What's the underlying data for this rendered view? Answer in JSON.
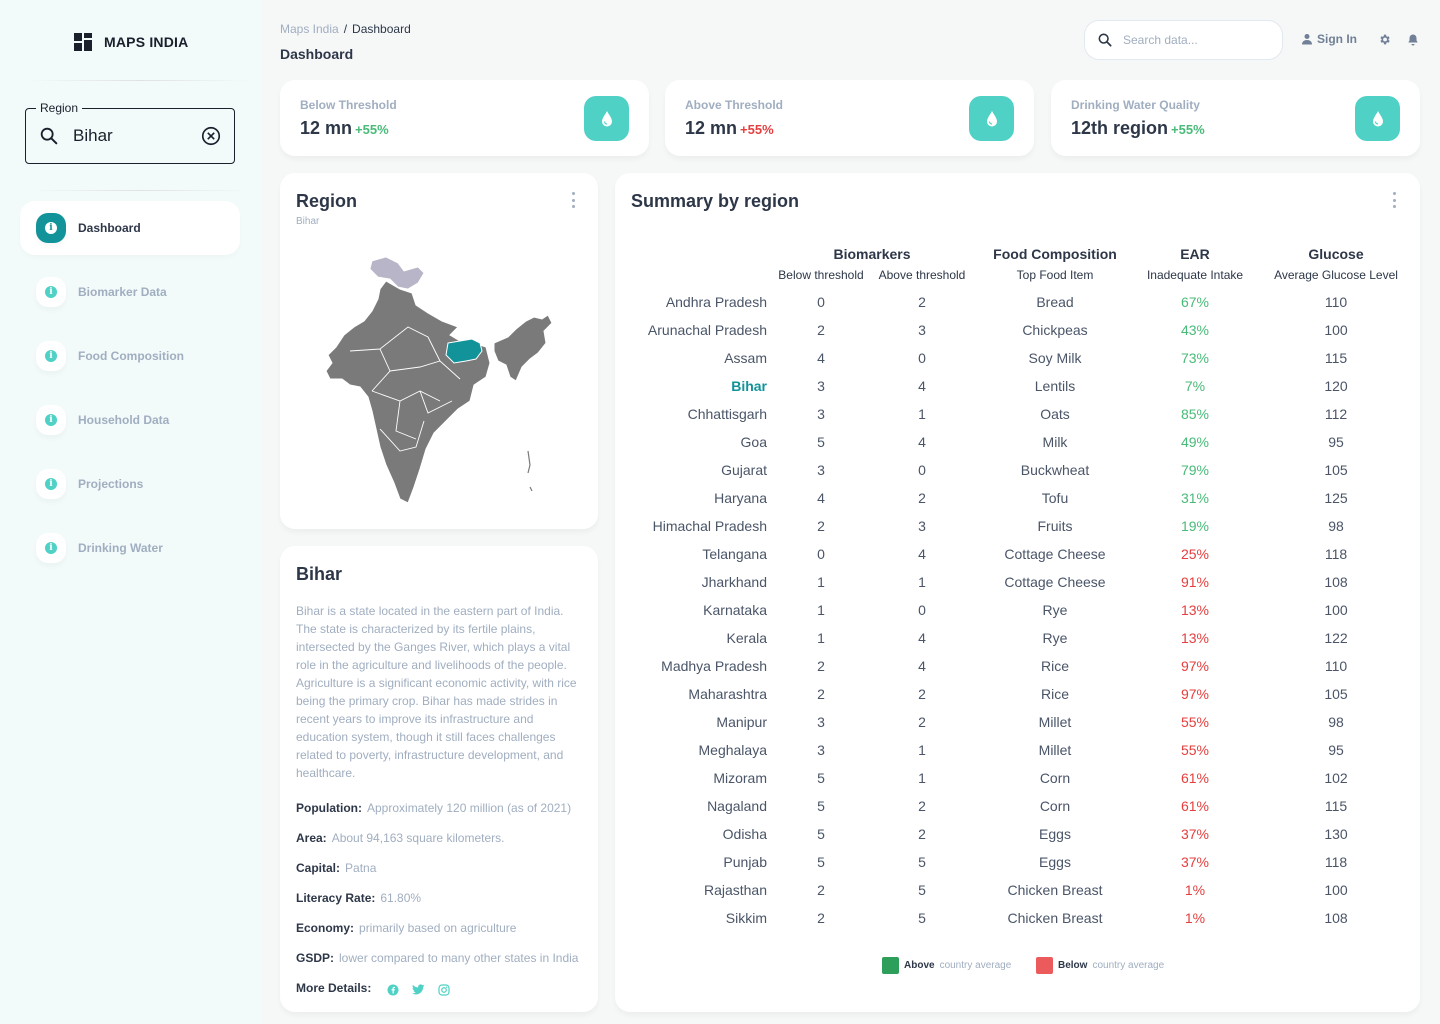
{
  "app": {
    "name": "MAPS INDIA"
  },
  "sidebar": {
    "region_filter": {
      "label": "Region",
      "value": "Bihar"
    },
    "nav": [
      {
        "label": "Dashboard",
        "active": true
      },
      {
        "label": "Biomarker Data",
        "active": false
      },
      {
        "label": "Food Composition",
        "active": false
      },
      {
        "label": "Household Data",
        "active": false
      },
      {
        "label": "Projections",
        "active": false
      },
      {
        "label": "Drinking Water",
        "active": false
      }
    ]
  },
  "header": {
    "breadcrumb": {
      "root": "Maps India",
      "separator": "/",
      "current": "Dashboard"
    },
    "title": "Dashboard",
    "search": {
      "placeholder": "Search data..."
    },
    "signin_label": "Sign In"
  },
  "stats": [
    {
      "label": "Below Threshold",
      "value": "12 mn",
      "change": "+55%",
      "change_color": "#48bb78"
    },
    {
      "label": "Above Threshold",
      "value": "12 mn",
      "change": "+55%",
      "change_color": "#e53e3e"
    },
    {
      "label": "Drinking Water Quality",
      "value": "12th region",
      "change": "+55%",
      "change_color": "#48bb78"
    }
  ],
  "region_card": {
    "title": "Region",
    "subtitle": "Bihar"
  },
  "info_card": {
    "title": "Bihar",
    "description": "Bihar is a state located in the eastern part of India. The state is characterized by its fertile plains, intersected by the Ganges River, which plays a vital role in the agriculture and livelihoods of the people. Agriculture is a significant economic activity, with rice being the primary crop. Bihar has made strides in recent years to improve its infrastructure and education system, though it still faces challenges related to poverty, infrastructure development, and healthcare.",
    "facts": [
      {
        "label": "Population:",
        "value": "Approximately 120 million (as of 2021)"
      },
      {
        "label": "Area:",
        "value": "About 94,163 square kilometers."
      },
      {
        "label": "Capital:",
        "value": "Patna"
      },
      {
        "label": "Literacy Rate:",
        "value": "61.80%"
      },
      {
        "label": "Economy:",
        "value": "primarily based on agriculture"
      },
      {
        "label": "GSDP:",
        "value": "lower compared to many other states in India"
      }
    ],
    "more_details_label": "More Details:"
  },
  "summary": {
    "title": "Summary by region",
    "groups": {
      "biomarkers": "Biomarkers",
      "food": "Food Composition",
      "ear": "EAR",
      "glucose": "Glucose"
    },
    "subheaders": {
      "below": "Below threshold",
      "above": "Above threshold",
      "food": "Top Food Item",
      "ear": "Inadequate Intake",
      "glucose": "Average Glucose Level"
    },
    "highlight": "Bihar",
    "rows": [
      {
        "region": "Andhra Pradesh",
        "below": "0",
        "above": "2",
        "food": "Bread",
        "ear": "67%",
        "ear_status": "above",
        "glucose": "110"
      },
      {
        "region": "Arunachal Pradesh",
        "below": "2",
        "above": "3",
        "food": "Chickpeas",
        "ear": "43%",
        "ear_status": "above",
        "glucose": "100"
      },
      {
        "region": "Assam",
        "below": "4",
        "above": "0",
        "food": "Soy Milk",
        "ear": "73%",
        "ear_status": "above",
        "glucose": "115"
      },
      {
        "region": "Bihar",
        "below": "3",
        "above": "4",
        "food": "Lentils",
        "ear": "7%",
        "ear_status": "above",
        "glucose": "120"
      },
      {
        "region": "Chhattisgarh",
        "below": "3",
        "above": "1",
        "food": "Oats",
        "ear": "85%",
        "ear_status": "above",
        "glucose": "112"
      },
      {
        "region": "Goa",
        "below": "5",
        "above": "4",
        "food": "Milk",
        "ear": "49%",
        "ear_status": "above",
        "glucose": "95"
      },
      {
        "region": "Gujarat",
        "below": "3",
        "above": "0",
        "food": "Buckwheat",
        "ear": "79%",
        "ear_status": "above",
        "glucose": "105"
      },
      {
        "region": "Haryana",
        "below": "4",
        "above": "2",
        "food": "Tofu",
        "ear": "31%",
        "ear_status": "above",
        "glucose": "125"
      },
      {
        "region": "Himachal Pradesh",
        "below": "2",
        "above": "3",
        "food": "Fruits",
        "ear": "19%",
        "ear_status": "above",
        "glucose": "98"
      },
      {
        "region": "Telangana",
        "below": "0",
        "above": "4",
        "food": "Cottage Cheese",
        "ear": "25%",
        "ear_status": "below",
        "glucose": "118"
      },
      {
        "region": "Jharkhand",
        "below": "1",
        "above": "1",
        "food": "Cottage Cheese",
        "ear": "91%",
        "ear_status": "below",
        "glucose": "108"
      },
      {
        "region": "Karnataka",
        "below": "1",
        "above": "0",
        "food": "Rye",
        "ear": "13%",
        "ear_status": "below",
        "glucose": "100"
      },
      {
        "region": "Kerala",
        "below": "1",
        "above": "4",
        "food": "Rye",
        "ear": "13%",
        "ear_status": "below",
        "glucose": "122"
      },
      {
        "region": "Madhya Pradesh",
        "below": "2",
        "above": "4",
        "food": "Rice",
        "ear": "97%",
        "ear_status": "below",
        "glucose": "110"
      },
      {
        "region": "Maharashtra",
        "below": "2",
        "above": "2",
        "food": "Rice",
        "ear": "97%",
        "ear_status": "below",
        "glucose": "105"
      },
      {
        "region": "Manipur",
        "below": "3",
        "above": "2",
        "food": "Millet",
        "ear": "55%",
        "ear_status": "below",
        "glucose": "98"
      },
      {
        "region": "Meghalaya",
        "below": "3",
        "above": "1",
        "food": "Millet",
        "ear": "55%",
        "ear_status": "below",
        "glucose": "95"
      },
      {
        "region": "Mizoram",
        "below": "5",
        "above": "1",
        "food": "Corn",
        "ear": "61%",
        "ear_status": "below",
        "glucose": "102"
      },
      {
        "region": "Nagaland",
        "below": "5",
        "above": "2",
        "food": "Corn",
        "ear": "61%",
        "ear_status": "below",
        "glucose": "115"
      },
      {
        "region": "Odisha",
        "below": "5",
        "above": "2",
        "food": "Eggs",
        "ear": "37%",
        "ear_status": "below",
        "glucose": "130"
      },
      {
        "region": "Punjab",
        "below": "5",
        "above": "5",
        "food": "Eggs",
        "ear": "37%",
        "ear_status": "below",
        "glucose": "118"
      },
      {
        "region": "Rajasthan",
        "below": "2",
        "above": "5",
        "food": "Chicken Breast",
        "ear": "1%",
        "ear_status": "below",
        "glucose": "100"
      },
      {
        "region": "Sikkim",
        "below": "2",
        "above": "5",
        "food": "Chicken Breast",
        "ear": "1%",
        "ear_status": "below",
        "glucose": "108"
      }
    ],
    "legend": [
      {
        "bold": "Above",
        "text": "country average",
        "color": "#2e9e5b"
      },
      {
        "bold": "Below",
        "text": "country average",
        "color": "#ec5b5b"
      }
    ],
    "colors": {
      "above": "#48bb78",
      "below": "#e53e3e"
    }
  }
}
